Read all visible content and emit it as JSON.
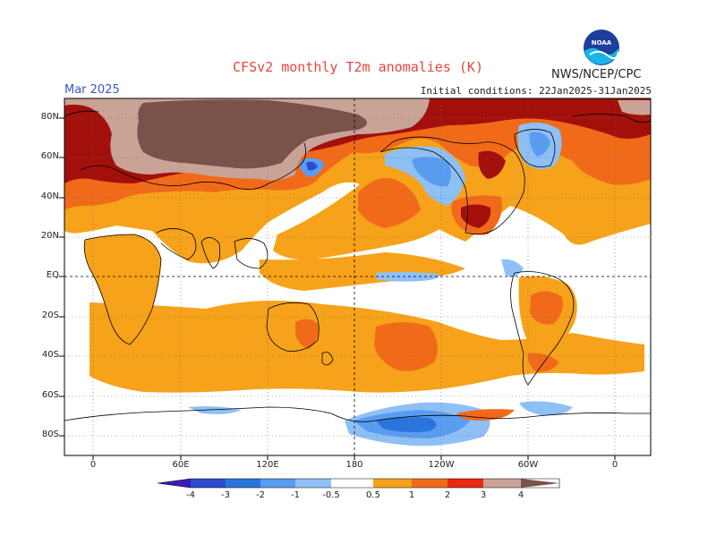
{
  "header": {
    "title": "CFSv2 monthly T2m anomalies (K)",
    "month": "Mar 2025",
    "initial_conditions": "Initial conditions: 22Jan2025-31Jan2025",
    "organization": "NWS/NCEP/CPC",
    "logo_text": "NOAA"
  },
  "axes": {
    "lat_labels": [
      "80N",
      "60N",
      "40N",
      "20N",
      "EQ",
      "20S",
      "40S",
      "60S",
      "80S"
    ],
    "lon_labels": [
      "0",
      "60E",
      "120E",
      "180",
      "120W",
      "60W",
      "0"
    ]
  },
  "colorbar": {
    "labels": [
      "-4",
      "-3",
      "-2",
      "-1",
      "-0.5",
      "0.5",
      "1",
      "2",
      "3",
      "4"
    ],
    "colors": [
      "#3a1eb4",
      "#2e4bd0",
      "#2a74dc",
      "#5a9cf0",
      "#8ec0f5",
      "#ffffff",
      "#f6a21a",
      "#f16a1a",
      "#e8280f",
      "#a3100b",
      "#c9a396",
      "#7a5249"
    ],
    "unit": "K"
  },
  "map": {
    "background": "#ffffff",
    "land_outline": "#000000",
    "grid_style": "dotted",
    "reference_lines": "equator and 180 dashed"
  }
}
